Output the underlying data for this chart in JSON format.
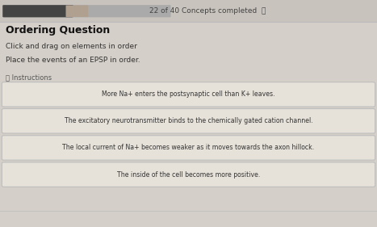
{
  "title_bar_text": "22 of 40 Concepts completed",
  "heading": "Ordering Question",
  "subtext1": "Click and drag on elements in order",
  "subtext2": "Place the events of an EPSP in order.",
  "instructions_label": "ⓘ Instructions",
  "items": [
    "More Na+ enters the postsynaptic cell than K+ leaves.",
    "The excitatory neurotransmitter binds to the chemically gated cation channel.",
    "The local current of Na+ becomes weaker as it moves towards the axon hillock.",
    "The inside of the cell becomes more positive."
  ],
  "bg_color": "#d4cfc8",
  "top_bar_bg": "#c8c3bc",
  "top_bar_text_color": "#444444",
  "progress_bar_filled_color": "#555555",
  "progress_bar_bg": "#aaaaaa",
  "card_bg": "#e6e2da",
  "card_border_color": "#bbbbbb",
  "card_text_color": "#333333",
  "heading_color": "#111111",
  "subtext_color": "#333333",
  "instructions_color": "#555555",
  "fig_width": 4.67,
  "fig_height": 2.81,
  "dpi": 100
}
